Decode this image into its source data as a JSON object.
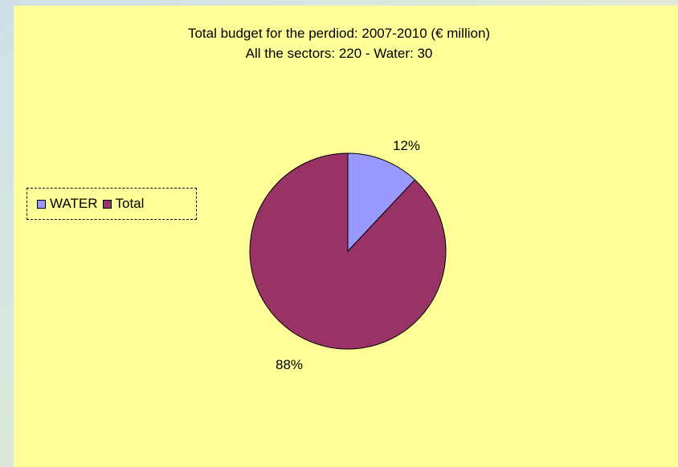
{
  "chart_data": {
    "type": "pie",
    "title": "Total budget for the perdiod: 2007-2010 (€ million)",
    "subtitle": "All the sectors: 220 - Water: 30",
    "categories": [
      "WATER",
      "Total"
    ],
    "values": [
      12,
      88
    ],
    "value_labels": [
      "12%",
      "88%"
    ],
    "colors": [
      "#9999ff",
      "#993366"
    ],
    "legend_position": "left"
  }
}
